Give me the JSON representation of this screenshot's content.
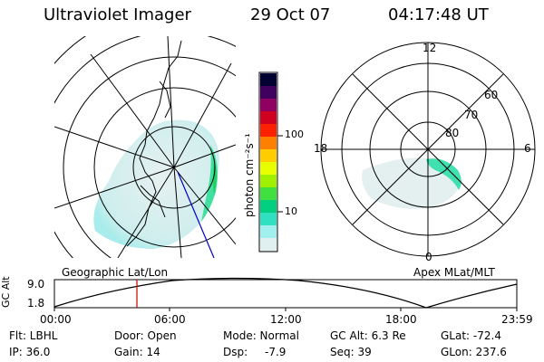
{
  "header": {
    "title": "Ultraviolet Imager",
    "date": "29 Oct 07",
    "time": "04:17:48 UT"
  },
  "colorbar": {
    "unit_label": "photon cm⁻²s⁻¹",
    "tick_100": "100",
    "tick_10": "10",
    "colors": [
      "#000033",
      "#400060",
      "#900060",
      "#d00020",
      "#ff2000",
      "#ff8000",
      "#ffcc00",
      "#e8ff00",
      "#a0f000",
      "#40e040",
      "#00d080",
      "#30e0c0",
      "#a0f0f0",
      "#e0f0f0"
    ]
  },
  "left_map": {
    "caption": "Geographic Lat/Lon"
  },
  "right_map": {
    "caption": "Apex MLat/MLT",
    "mlt_labels": {
      "top": "12",
      "left": "18",
      "right": "6",
      "bottom": "0"
    },
    "lat_labels": [
      "60",
      "70",
      "80"
    ]
  },
  "altitude_panel": {
    "ylabel": "GC Alt",
    "ytick_top": "9.0",
    "ytick_bottom": "1.8",
    "xticks": [
      "00:00",
      "06:00",
      "12:00",
      "18:00",
      "23:59"
    ]
  },
  "status": {
    "row1": {
      "filter": "Flt: LBHL",
      "door": "Door: Open",
      "mode": "Mode: Normal",
      "gc_alt": "GC Alt: 6.3 Re",
      "glat": "GLat: -72.4"
    },
    "row2": {
      "ip": "IP: 36.0",
      "gain": "Gain: 14",
      "dsp_label": "Dsp:",
      "dsp_value": "-7.9",
      "seq": "Seq: 39",
      "glon": "GLon: 237.6"
    }
  }
}
